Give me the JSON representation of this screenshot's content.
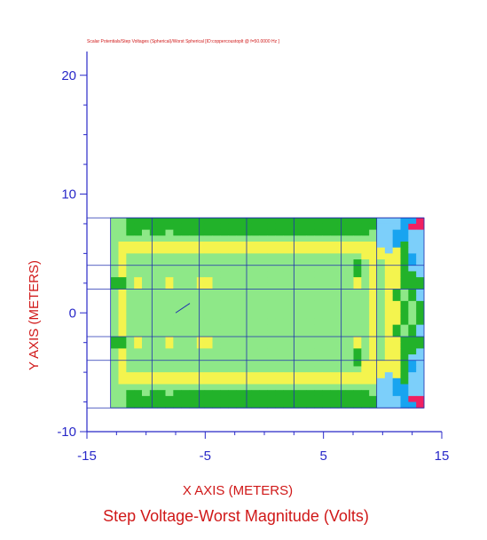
{
  "chart_data": {
    "type": "heatmap",
    "header": "Scalar Potentials/Step Voltages (Spherical)/Worst Spherical [ID:coppercoustoplt @ f=50.0000 Hz ]",
    "title": "Step Voltage-Worst Magnitude (Volts)",
    "xlabel": "X AXIS  (METERS)",
    "ylabel": "Y AXIS  (METERS)",
    "xlim": [
      -15,
      15
    ],
    "ylim": [
      -10,
      22
    ],
    "xticks": [
      -15,
      -5,
      5,
      15
    ],
    "yticks": [
      -10,
      0,
      10,
      20
    ],
    "xtick_labels": [
      "-15",
      "-5",
      "5",
      "15"
    ],
    "ytick_labels": [
      "-10",
      "0",
      "10",
      "20"
    ],
    "grid_x_extent": [
      -13.0,
      13.5
    ],
    "grid_y_extent": [
      -8.0,
      8.0
    ],
    "grid_cols": 40,
    "grid_rows": 32,
    "palette": {
      "a": "#8ee888",
      "g": "#22b22a",
      "y": "#f4f44e",
      "b": "#7ccffa",
      "c": "#18a4f0",
      "r": "#f02060"
    },
    "rows": [
      "aaaaagggggggaaaagggggggggggggggggaaaaaaagggaaaaaaaaaaaaaaaaaaaaaaaaaaaaaaaaaaaaaaaaaaaaaaaaaaaaaaaaaaaaaaaaaaaaaaaaaaaaaaaaaaaaaaaaaaaaaaaaaaaa",
      "aaaaaaaaaaaaaaaaaaaaaaaaaaaaaaaaaaaaaaaaaaaaaaaaaaaaaaaaaaaaaaaaaaaaaaaaaaaaaaaaaaaaaaaaaaaaaaaaaaaaaaaaaaaaaaaaaaaaaaaaaaaaaaaaaaaaaaaaaaaaaaaaaaaaaaaaaaaaaaaaaaaaaaa"
    ],
    "cells": [
      "aaggggggggggggggggggggggggggggggggbbbccr",
      "aaggggggggggggggggggggggggggggggggbbbcrr",
      "aaggaggagggggggggggggggggggggggggabbccbb",
      "aaaaaaaaaaaaaaaaaaaaaaaaaaaaaaaaaabbccbb",
      "ayyyyyyyyyyyyyyyyyyyyyyyyyyyyyyyyybbcgbb",
      "ayyyyyyyyyyyyyyyyyyyyyyyyyyyyyyyyyybygbb",
      "ayaaaaaaaaaaaaaaaaaaaaaaaaaaaaaayyyyygcb",
      "ayaaaaaaaaaaaaaaaaaaaaaaaaaaaaagayayygcb",
      "ayaaaaaaaaaaaaaaaaaaaaaaaaaaaaagayayygbb",
      "ayaaaaaaaaaaaaaaaaaaaaaaaaaaaaagayayyggb",
      "ggayaaayaaayyaaaaaaaaaaaaaaaaaayayayyggg",
      "ggayaaayaaayyaaaaaaaaaaaaaaaaaayayayyggg",
      "ayaaaaaaaaaaaaaaaaaaaaaaaaaaaaaaayaygagb",
      "ayaaaaaaaaaaaaaaaaaaaaaaaaaaaaaaayaygagb",
      "ayaaaaaaaaaaaaaaaaaaaaaaaaaaaaaaayayygag",
      "ayaaaaaaaaaaaaaaaaaaaaaaaaaaaaaaayayygag",
      "ayaaaaaaaaaaaaaaaaaaaaaaaaaaaaaaayayygag",
      "ayaaaaaaaaaaaaaaaaaaaaaaaaaaaaaaayayygag",
      "ayaaaaaaaaaaaaaaaaaaaaaaaaaaaaaaayaygagb",
      "ayaaaaaaaaaaaaaaaaaaaaaaaaaaaaaaayaygagb",
      "ggayaaayaaayyaaaaaaaaaaaaaaaaaayayayyggg",
      "ggayaaayaaayyaaaaaaaaaaaaaaaaaayayayyggg",
      "ayaaaaaaaaaaaaaaaaaaaaaaaaaaaaagayayyggb",
      "ayaaaaaaaaaaaaaaaaaaaaaaaaaaaaagayayygbb",
      "ayaaaaaaaaaaaaaaaaaaaaaaaaaaaaagyyyyygcb",
      "ayaaaaaaaaaaaaaaaaaaaaaaaaaaaaaayyyyygcb",
      "ayyyyyyyyyyyyyyyyyyyyyyyyyyyyyyyyyybygbb",
      "ayyyyyyyyyyyyyyyyyyyyyyyyyyyyyyyyybbcgbb",
      "aaaaaaaaaaaaaaaaaaaaaaaaaaaaaaaaaabbccbb",
      "aaggaggagggggggggggggggggggggggggabbccbb",
      "aaggggggggggggggggggggggggggggggggbbbcrr",
      "aaggggggggggggggggggggggggggggggggbbbccr"
    ],
    "grid_lines_x": [
      -9.5,
      -5.5,
      -1.5,
      2.5,
      6.5,
      9.5
    ],
    "grid_lines_y": [
      -8.0,
      -4.0,
      -2.0,
      2.0,
      4.0,
      8.0
    ],
    "marker_segment": [
      [
        -7.5,
        0.0
      ],
      [
        -6.3,
        0.8
      ]
    ],
    "colors": {
      "axis": "#2828c8",
      "title": "#d01818",
      "header": "#d01818",
      "grid": "#2030b0"
    }
  }
}
